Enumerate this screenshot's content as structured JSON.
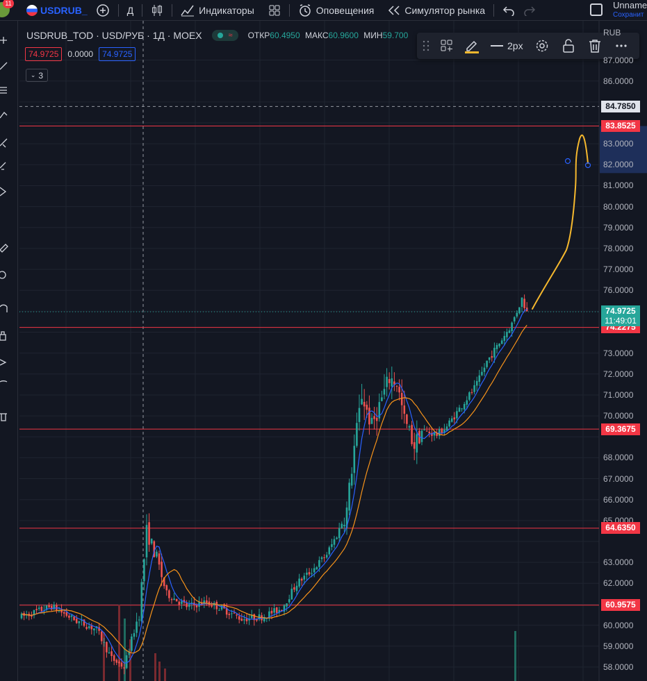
{
  "topbar": {
    "notification_count": "11",
    "symbol": "USDRUB_",
    "interval": "Д",
    "indicators": "Индикаторы",
    "alerts": "Оповещения",
    "replay": "Симулятор рынка",
    "user_name": "Unname",
    "user_status": "Сохранит"
  },
  "legend": {
    "title": "USDRUB_TOD · USD/РУБ · 1Д · MOEX",
    "open_label": "ОТКР",
    "open_value": "60.4950",
    "high_label": "МАКС",
    "high_value": "60.9600",
    "low_label": "МИН",
    "low_value": "59.700",
    "bid": "74.9725",
    "spread": "0.0000",
    "ask": "74.9725",
    "collapsed_count": "3"
  },
  "drawbar": {
    "width_label": "2px"
  },
  "price_axis": {
    "currency": "RUB",
    "ticks": [
      "87.0000",
      "86.0000",
      "83.0000",
      "82.0000",
      "81.0000",
      "80.0000",
      "79.0000",
      "78.0000",
      "77.0000",
      "76.0000",
      "73.0000",
      "72.0000",
      "71.0000",
      "70.0000",
      "68.0000",
      "67.0000",
      "66.0000",
      "65.0000",
      "63.0000",
      "62.0000",
      "61.0000",
      "60.0000",
      "59.0000",
      "58.0000"
    ],
    "hline_tags": [
      "84.7850",
      "83.8525",
      "74.2275",
      "69.3675",
      "64.6350",
      "60.9575"
    ],
    "current_price": "74.9725",
    "countdown": "11:49:01"
  },
  "colors": {
    "up": "#26a69a",
    "down": "#ef5350",
    "hline": "#f23645",
    "ma_fast": "#2962ff",
    "ma_slow": "#f7931a",
    "drawing": "#f5b82e"
  }
}
